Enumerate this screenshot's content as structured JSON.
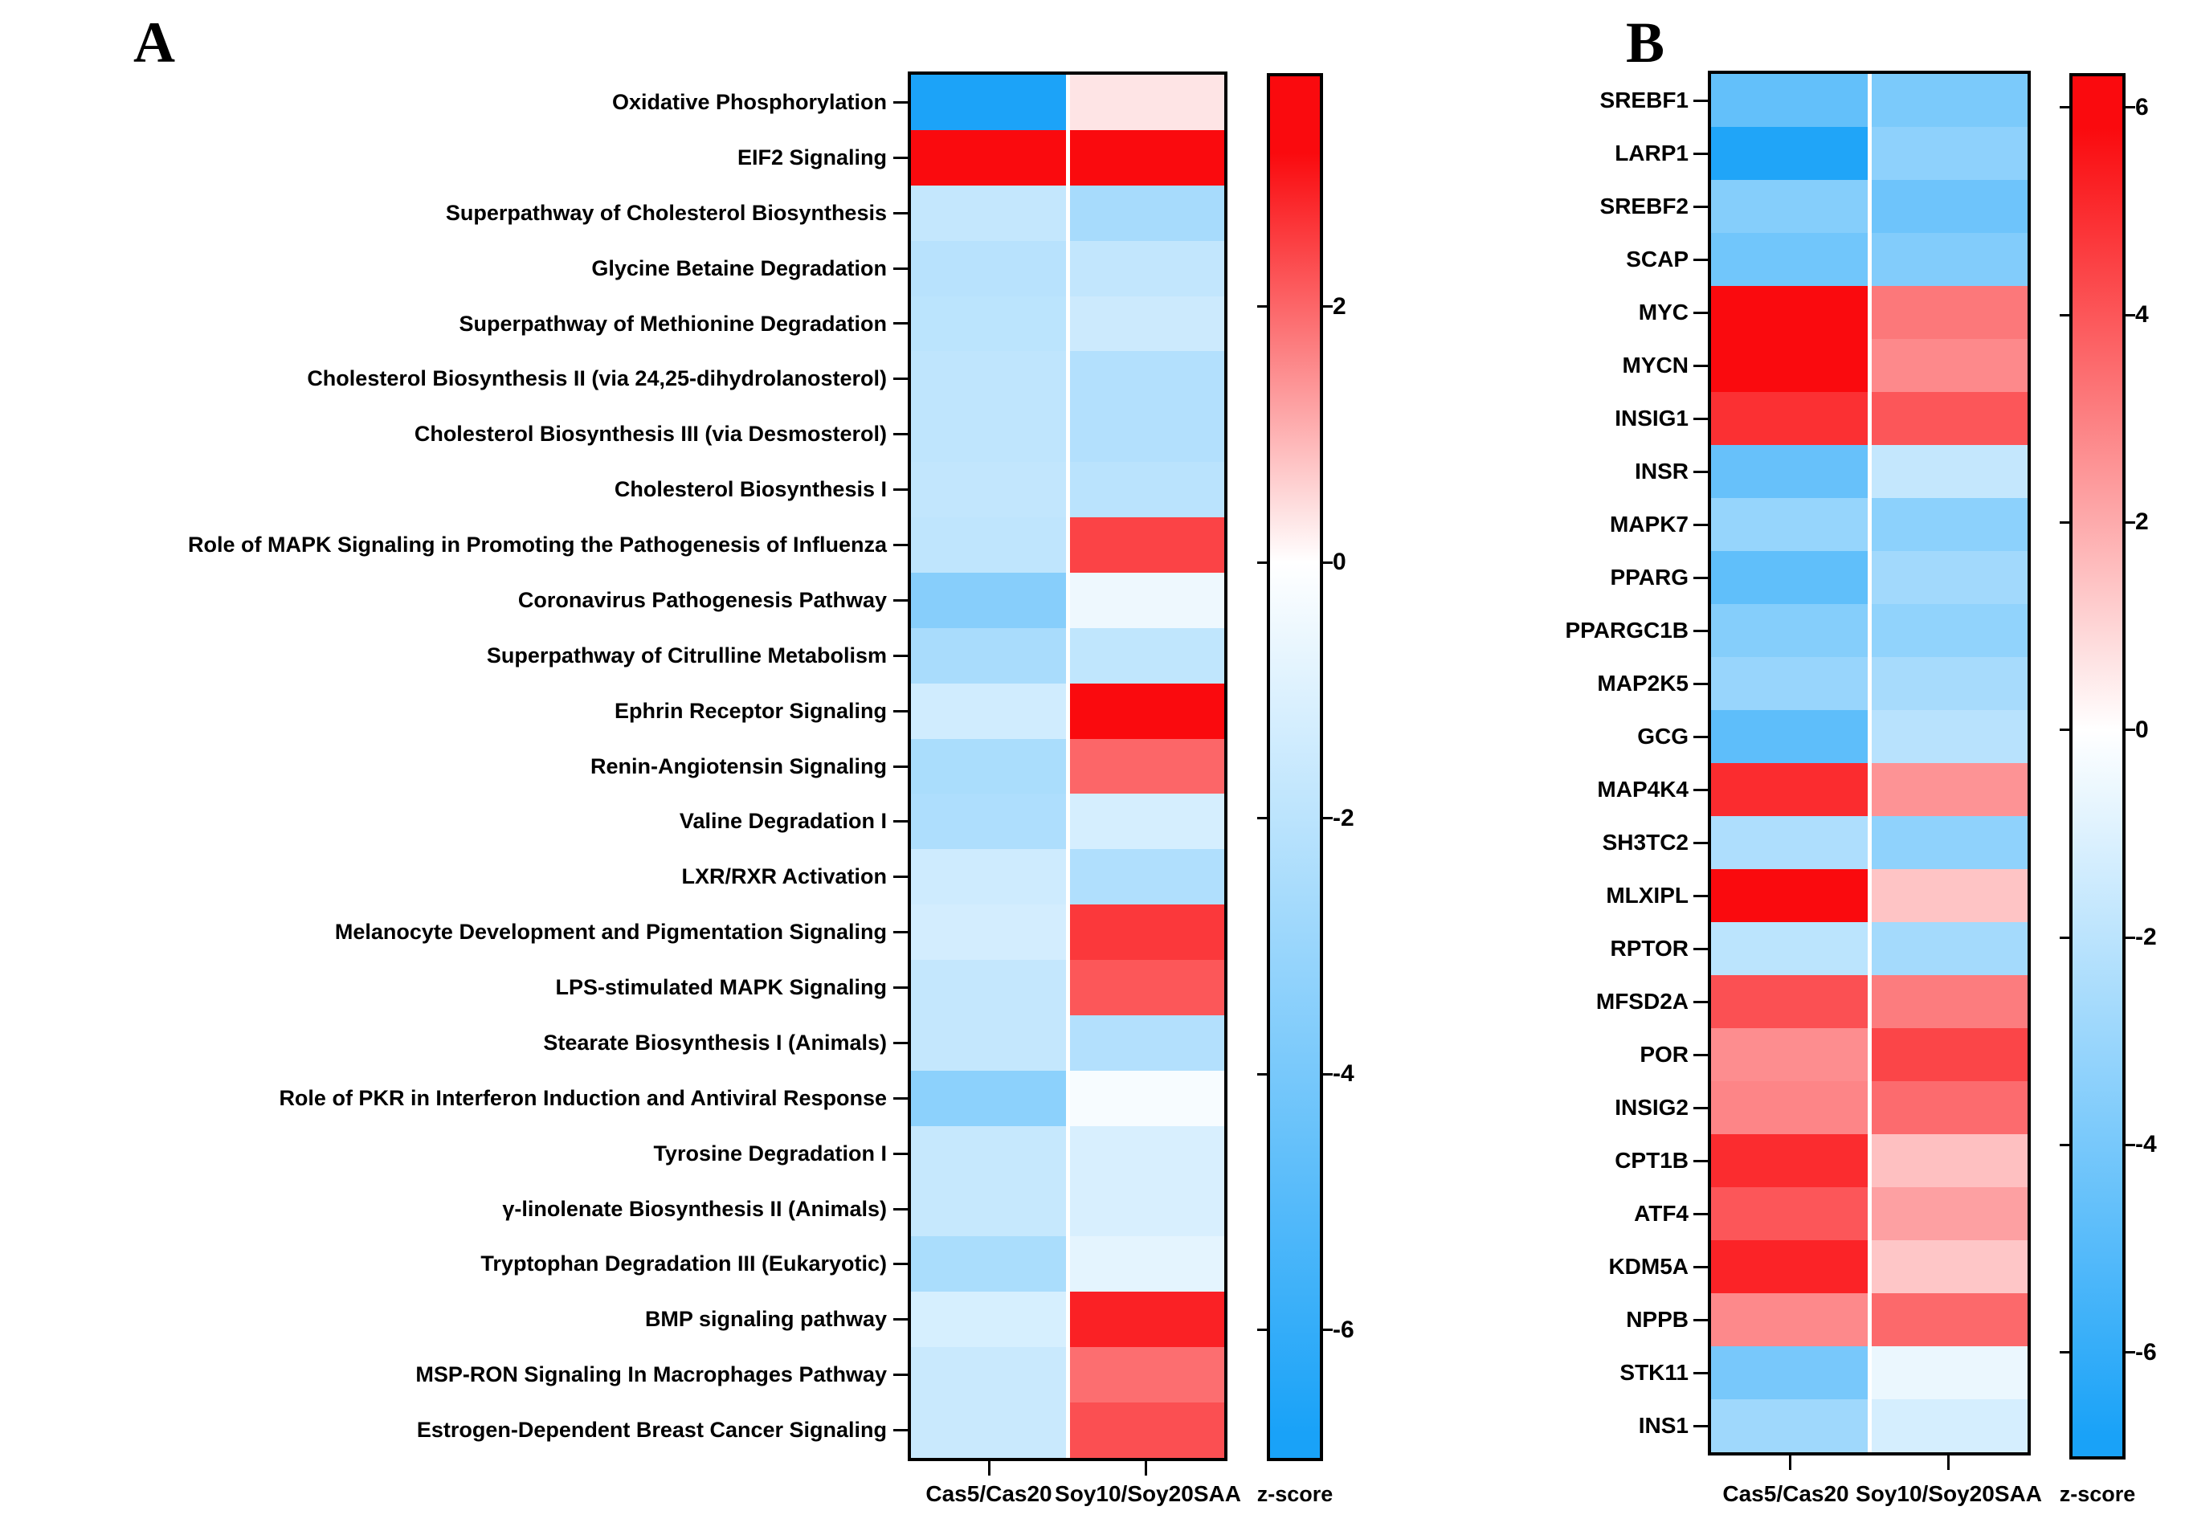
{
  "figure_title": "",
  "palette": {
    "positive_end": "#FA0A0E",
    "zero": "#FFFFFF",
    "negative_end": "#19A2F8"
  },
  "chart_data": [
    {
      "type": "heatmap",
      "panel": "A",
      "columns": [
        "Cas5/Cas20",
        "Soy10/Soy20SAA"
      ],
      "colorbar": {
        "title": "z-score",
        "ticks": [
          2,
          0,
          -2,
          -4,
          -6
        ],
        "scale_top": 3.8,
        "scale_bottom": -7.0,
        "saturate_pos": 3.2,
        "saturate_neg": -6.8
      },
      "categories": [
        "Oxidative Phosphorylation",
        "EIF2 Signaling",
        "Superpathway of Cholesterol Biosynthesis",
        "Glycine Betaine Degradation",
        "Superpathway of Methionine Degradation",
        "Cholesterol Biosynthesis II (via 24,25-dihydrolanosterol)",
        "Cholesterol Biosynthesis III (via Desmosterol)",
        "Cholesterol Biosynthesis I",
        "Role of MAPK Signaling in Promoting the Pathogenesis of Influenza",
        "Coronavirus Pathogenesis Pathway",
        "Superpathway of Citrulline Metabolism",
        "Ephrin Receptor Signaling",
        "Renin-Angiotensin Signaling",
        "Valine Degradation I",
        "LXR/RXR Activation",
        "Melanocyte Development and Pigmentation Signaling",
        "LPS-stimulated MAPK Signaling",
        "Stearate Biosynthesis I (Animals)",
        "Role of PKR in Interferon Induction and Antiviral Response",
        "Tyrosine Degradation I",
        "γ-linolenate Biosynthesis II (Animals)",
        "Tryptophan Degradation III (Eukaryotic)",
        "BMP signaling pathway",
        "MSP-RON Signaling In Macrophages Pathway",
        "Estrogen-Dependent Breast Cancer Signaling"
      ],
      "series": [
        {
          "name": "Cas5/Cas20",
          "values": [
            -6.7,
            3.6,
            -1.75,
            -2.1,
            -2.0,
            -1.9,
            -1.9,
            -1.8,
            -1.9,
            -3.55,
            -2.55,
            -1.4,
            -2.5,
            -2.4,
            -1.45,
            -1.3,
            -1.75,
            -1.75,
            -3.4,
            -1.7,
            -1.7,
            -2.5,
            -1.2,
            -1.6,
            -1.6
          ]
        },
        {
          "name": "Soy10/Soy20SAA",
          "values": [
            0.35,
            3.5,
            -2.6,
            -1.8,
            -1.5,
            -2.25,
            -2.25,
            -2.05,
            2.45,
            -0.5,
            -1.85,
            3.5,
            2.0,
            -1.25,
            -2.35,
            2.6,
            2.2,
            -2.25,
            -0.25,
            -1.15,
            -1.15,
            -0.8,
            2.9,
            1.9,
            2.3
          ]
        }
      ]
    },
    {
      "type": "heatmap",
      "panel": "B",
      "columns": [
        "Cas5/Cas20",
        "Soy10/Soy20SAA"
      ],
      "colorbar": {
        "title": "z-score",
        "ticks": [
          6,
          4,
          2,
          0,
          -2,
          -4,
          -6
        ],
        "scale_top": 6.3,
        "scale_bottom": -7.0,
        "saturate_pos": 5.8,
        "saturate_neg": -6.8
      },
      "categories": [
        "SREBF1",
        "LARP1",
        "SREBF2",
        "SCAP",
        "MYC",
        "MYCN",
        "INSIG1",
        "INSR",
        "MAPK7",
        "PPARG",
        "PPARGC1B",
        "MAP2K5",
        "GCG",
        "MAP4K4",
        "SH3TC2",
        "MLXIPL",
        "RPTOR",
        "MFSD2A",
        "POR",
        "INSIG2",
        "CPT1B",
        "ATF4",
        "KDM5A",
        "NPPB",
        "STK11",
        "INS1"
      ],
      "series": [
        {
          "name": "Cas5/Cas20",
          "values": [
            -4.6,
            -6.6,
            -3.6,
            -4.2,
            6.2,
            6.2,
            4.9,
            -4.5,
            -3.1,
            -4.7,
            -3.6,
            -3.05,
            -4.75,
            5.0,
            -2.4,
            5.8,
            -2.0,
            4.15,
            2.7,
            2.9,
            5.0,
            4.0,
            5.2,
            2.8,
            -4.0,
            -2.85
          ]
        },
        {
          "name": "Soy10/Soy20SAA",
          "values": [
            -3.9,
            -3.35,
            -4.3,
            -3.7,
            3.2,
            2.8,
            4.0,
            -1.75,
            -3.4,
            -2.75,
            -3.25,
            -2.6,
            -2.1,
            2.55,
            -3.3,
            1.4,
            -2.7,
            3.1,
            4.4,
            3.5,
            1.5,
            2.25,
            1.35,
            3.55,
            -0.6,
            -1.25
          ]
        }
      ]
    }
  ]
}
